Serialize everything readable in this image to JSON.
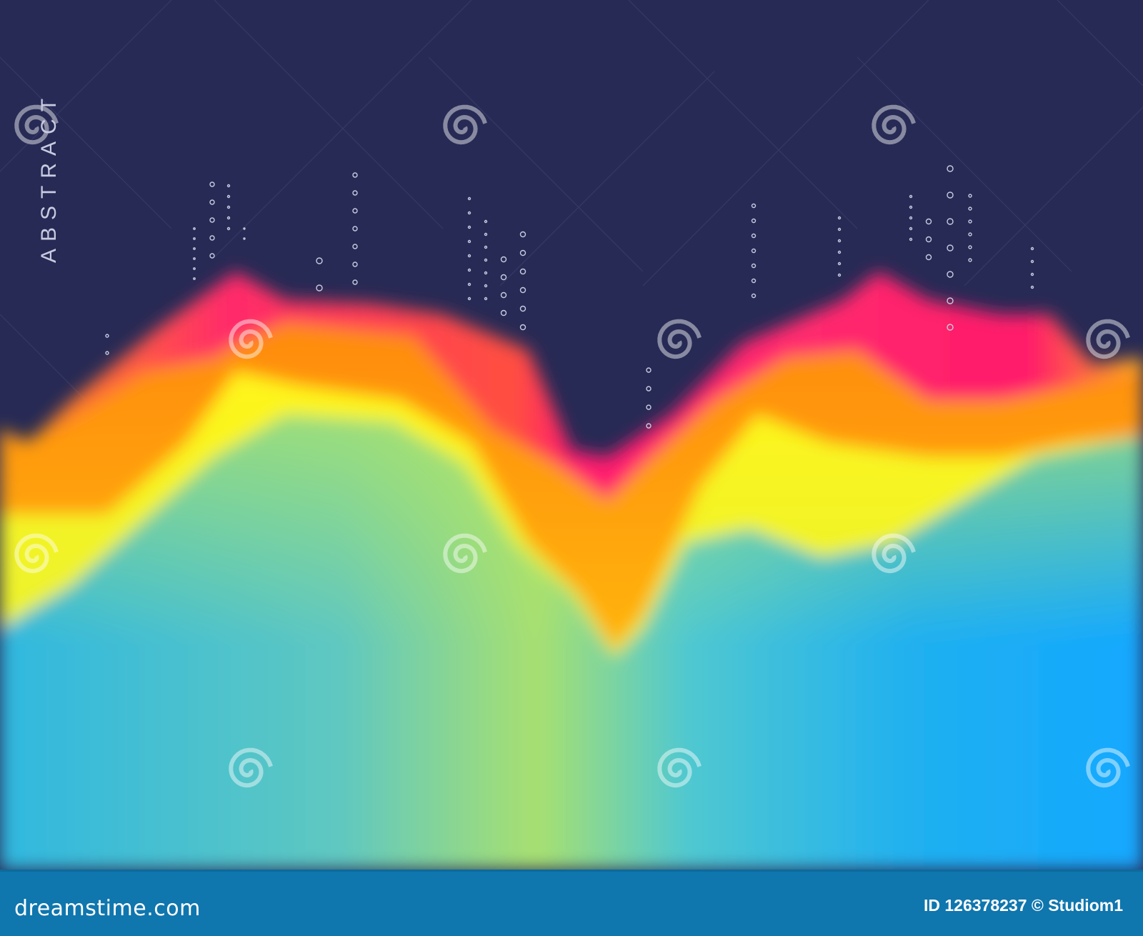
{
  "artwork": {
    "vertical_title": "ABSTRACT",
    "watermark_text": "dreamstime",
    "colors": {
      "background": "#272a55",
      "magenta": "#ff1a6e",
      "orange": "#ff8a10",
      "yellow": "#fff51a",
      "green": "#b8e85a",
      "cyan": "#40c0e0",
      "blue": "#14a8ff",
      "footer": "#0f76ae"
    }
  },
  "footer": {
    "logo": "dreamstime.com",
    "credit": "ID 126378237 © Studiom1"
  }
}
